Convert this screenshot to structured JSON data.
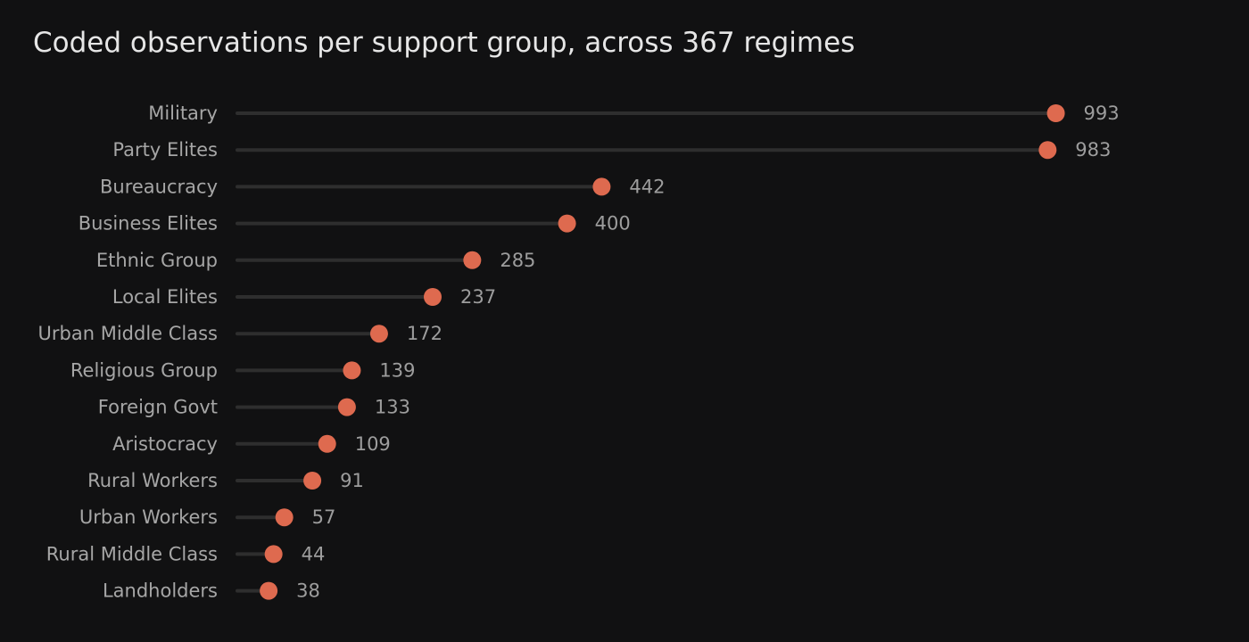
{
  "chart_data": {
    "type": "lollipop",
    "title": "Coded observations per support group, across 367 regimes",
    "xlabel": "",
    "ylabel": "",
    "xlim": [
      0,
      1000
    ],
    "grid": false,
    "legend": "none",
    "colors": {
      "point": "#de6a4f",
      "stem": "#2e2e2e",
      "background": "#111112"
    },
    "categories": [
      "Military",
      "Party Elites",
      "Bureaucracy",
      "Business Elites",
      "Ethnic Group",
      "Local Elites",
      "Urban Middle Class",
      "Religious Group",
      "Foreign Govt",
      "Aristocracy",
      "Rural Workers",
      "Urban Workers",
      "Rural Middle Class",
      "Landholders"
    ],
    "values": [
      993,
      983,
      442,
      400,
      285,
      237,
      172,
      139,
      133,
      109,
      91,
      57,
      44,
      38
    ]
  }
}
